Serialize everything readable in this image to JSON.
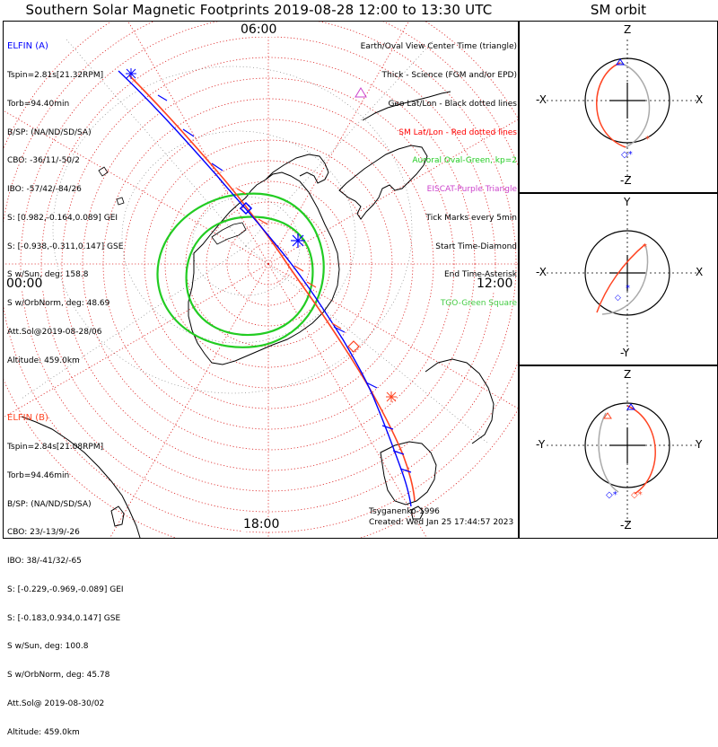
{
  "title": "Southern Solar Magnetic Footprints 2019-08-28 12:00 to 13:30 UTC",
  "sm_title": "SM orbit",
  "colors": {
    "elfin_a": "#0000ff",
    "elfin_b": "#ff4422",
    "grid": "#dd2222",
    "oval": "#22cc22",
    "eiscat": "#cc44cc",
    "tgo": "#44cc44"
  },
  "elfin_a": {
    "name": "ELFIN (A)",
    "lines": [
      "Tspin=2.81s[21.32RPM]",
      "Torb=94.40min",
      "B/SP: (NA/ND/SD/SA)",
      "CBO: -36/11/-50/2",
      "IBO: -57/42/-84/26",
      "S: [0.982,-0.164,0.089] GEI",
      "S: [-0.938,-0.311,0.147] GSE",
      "S w/Sun, deg: 158.8",
      "S w/OrbNorm, deg: 48.69",
      "Att.Sol@2019-08-28/06",
      "Altitude: 459.0km"
    ]
  },
  "elfin_b": {
    "name": "ELFIN (B)",
    "lines": [
      "Tspin=2.84s[21.08RPM]",
      "Torb=94.46min",
      "B/SP: (NA/ND/SD/SA)",
      "CBO: 23/-13/9/-26",
      "IBO: 38/-41/32/-65",
      "S: [-0.229,-0.969,-0.089] GEI",
      "S: [-0.183,0.934,0.147] GSE",
      "S w/Sun, deg: 100.8",
      "S w/OrbNorm, deg: 45.78",
      "Att.Sol@ 2019-08-30/02",
      "Altitude: 459.0km"
    ]
  },
  "legend": [
    {
      "text": "Earth/Oval View Center Time (triangle)",
      "color": "#000000"
    },
    {
      "text": "Thick - Science (FGM and/or EPD)",
      "color": "#000000"
    },
    {
      "text": "Geo Lat/Lon - Black dotted lines",
      "color": "#000000"
    },
    {
      "text": "SM Lat/Lon - Red dotted lines",
      "color": "#ff0000"
    },
    {
      "text": "Auroral Oval-Green, kp=2",
      "color": "#22cc22"
    },
    {
      "text": "EISCAT-Purple Triangle",
      "color": "#cc44cc"
    },
    {
      "text": "Tick Marks every 5min",
      "color": "#000000"
    },
    {
      "text": "Start Time-Diamond",
      "color": "#000000"
    },
    {
      "text": "End Time-Asterisk",
      "color": "#000000"
    },
    {
      "text": "TGO-Green Square",
      "color": "#44cc44"
    }
  ],
  "clock_labels": {
    "top": "06:00",
    "left": "00:00",
    "right": "12:00",
    "bottom": "18:00"
  },
  "credit": {
    "author": "Tsyganenko-1996",
    "created": "Created: Wed Jan 25 17:44:57 2023"
  },
  "sm_panels": [
    {
      "top": "Z",
      "bottom": "-Z",
      "left": "-X",
      "right": "X"
    },
    {
      "top": "Y",
      "bottom": "-Y",
      "left": "-X",
      "right": "X"
    },
    {
      "top": "Z",
      "bottom": "-Z",
      "left": "-Y",
      "right": "Y"
    }
  ]
}
